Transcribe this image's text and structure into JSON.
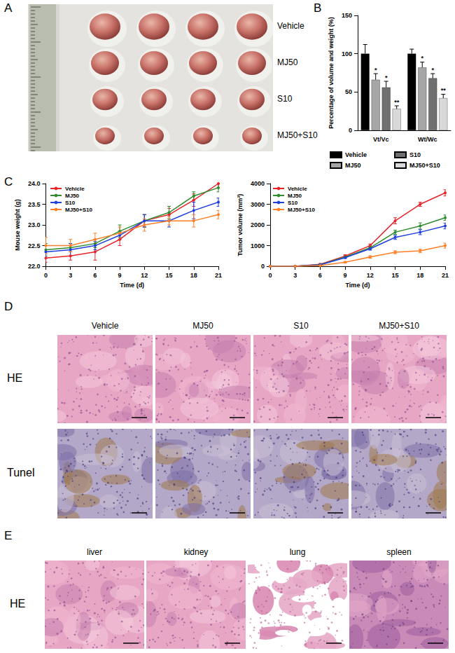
{
  "panel_labels": [
    "A",
    "B",
    "C",
    "D",
    "E"
  ],
  "panel_a": {
    "rows": [
      "Vehicle",
      "MJ50",
      "S10",
      "MJ50+S10"
    ]
  },
  "panel_d": {
    "columns": [
      "Vehicle",
      "MJ50",
      "S10",
      "MJ50+S10"
    ],
    "rows": [
      "HE",
      "Tunel"
    ]
  },
  "panel_e": {
    "row": "HE",
    "columns": [
      "liver",
      "kidney",
      "lung",
      "spleen"
    ]
  },
  "chart_data": [
    {
      "type": "bar",
      "ylabel": "Percentage of volume and weight (%)",
      "categories": [
        "Vt/Vc",
        "Wt/Wc"
      ],
      "ylim": [
        0,
        150
      ],
      "yticks": [
        0,
        50,
        100,
        150
      ],
      "grid": false,
      "legend": "bottom",
      "series": [
        {
          "name": "Vehicle",
          "color": "#000000",
          "values": [
            100,
            100
          ],
          "errors": [
            12,
            6
          ]
        },
        {
          "name": "MJ50",
          "color": "#a6a6a6",
          "values": [
            66,
            82
          ],
          "errors": [
            8,
            7
          ],
          "significance": [
            "*",
            "*"
          ]
        },
        {
          "name": "S10",
          "color": "#707070",
          "values": [
            56,
            68
          ],
          "errors": [
            8,
            6
          ],
          "significance": [
            "*",
            "*"
          ]
        },
        {
          "name": "MJ50+S10",
          "color": "#d9d9d9",
          "values": [
            28,
            42
          ],
          "errors": [
            4,
            5
          ],
          "significance": [
            "**",
            "**"
          ]
        }
      ]
    },
    {
      "type": "line",
      "xlabel": "Time (d)",
      "ylabel": "Mouse weight (g)",
      "x": [
        0,
        3,
        6,
        9,
        12,
        15,
        18,
        21
      ],
      "xlim": [
        0,
        21
      ],
      "xticks": [
        0,
        3,
        6,
        9,
        12,
        15,
        18,
        21
      ],
      "ylim": [
        22,
        24
      ],
      "yticks": [
        {
          "value": 22,
          "label": "22.0"
        },
        {
          "value": 22.5,
          "label": "22.5"
        },
        {
          "value": 23,
          "label": "23.0"
        },
        {
          "value": 23.5,
          "label": "23.5"
        },
        {
          "value": 24,
          "label": "24.0"
        }
      ],
      "grid": false,
      "legend": "top-left",
      "marker": "circle",
      "series": [
        {
          "name": "Vehicle",
          "color": "#e8242a",
          "values": [
            22.2,
            22.25,
            22.35,
            22.65,
            23.1,
            23.25,
            23.6,
            24.0
          ],
          "errors": [
            0.1,
            0.1,
            0.2,
            0.15,
            0.15,
            0.15,
            0.15,
            0.1
          ]
        },
        {
          "name": "MJ50",
          "color": "#2e8b2e",
          "values": [
            22.4,
            22.45,
            22.55,
            22.85,
            23.1,
            23.3,
            23.7,
            23.9
          ],
          "errors": [
            0.15,
            0.1,
            0.1,
            0.15,
            0.15,
            0.15,
            0.1,
            0.1
          ]
        },
        {
          "name": "S10",
          "color": "#1f3fe0",
          "values": [
            22.35,
            22.4,
            22.5,
            22.75,
            23.1,
            23.1,
            23.35,
            23.55
          ],
          "errors": [
            0.15,
            0.15,
            0.1,
            0.1,
            0.15,
            0.15,
            0.2,
            0.1
          ]
        },
        {
          "name": "MJ50+S10",
          "color": "#ff7f27",
          "values": [
            22.5,
            22.5,
            22.65,
            22.8,
            23.0,
            23.1,
            23.1,
            23.25
          ],
          "errors": [
            0.2,
            0.15,
            0.15,
            0.15,
            0.15,
            0.1,
            0.15,
            0.1
          ]
        }
      ]
    },
    {
      "type": "line",
      "xlabel": "Time (d)",
      "ylabel": "Tumor volume (mm³)",
      "x": [
        0,
        3,
        6,
        9,
        12,
        15,
        18,
        21
      ],
      "xlim": [
        0,
        21
      ],
      "xticks": [
        0,
        3,
        6,
        9,
        12,
        15,
        18,
        21
      ],
      "ylim": [
        0,
        4000
      ],
      "yticks": [
        0,
        1000,
        2000,
        3000,
        4000
      ],
      "grid": false,
      "legend": "top-left",
      "marker": "circle",
      "series": [
        {
          "name": "Vehicle",
          "color": "#e8242a",
          "values": [
            0,
            0,
            100,
            500,
            1000,
            2200,
            3000,
            3550
          ],
          "errors": [
            0,
            0,
            30,
            60,
            80,
            150,
            100,
            150
          ]
        },
        {
          "name": "MJ50",
          "color": "#2e8b2e",
          "values": [
            0,
            0,
            80,
            450,
            900,
            1650,
            1950,
            2350
          ],
          "errors": [
            0,
            0,
            20,
            50,
            80,
            100,
            150,
            130
          ]
        },
        {
          "name": "S10",
          "color": "#1f3fe0",
          "values": [
            0,
            0,
            70,
            420,
            850,
            1400,
            1650,
            1950
          ],
          "errors": [
            0,
            0,
            20,
            40,
            70,
            100,
            120,
            140
          ]
        },
        {
          "name": "MJ50+S10",
          "color": "#ff7f27",
          "values": [
            0,
            0,
            40,
            200,
            450,
            680,
            750,
            1000
          ],
          "errors": [
            0,
            0,
            10,
            30,
            60,
            70,
            80,
            120
          ]
        }
      ]
    }
  ]
}
